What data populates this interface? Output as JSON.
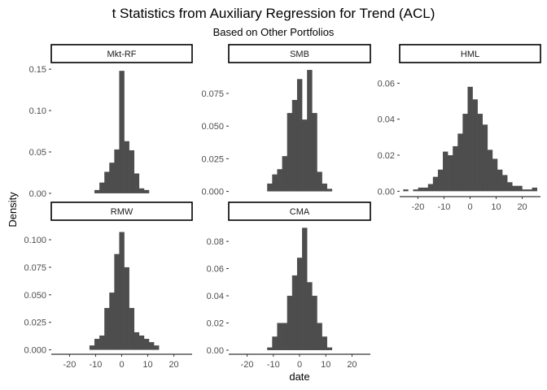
{
  "chart_data": {
    "type": "bar",
    "title": "t Statistics from Auxiliary Regression for Trend (ACL)",
    "subtitle": "Based on Other Portfolios",
    "xlabel": "date",
    "ylabel": "Density",
    "x_ticks": [
      "-20",
      "-10",
      "0",
      "10",
      "20"
    ],
    "xlim": [
      -27,
      27
    ],
    "bin_width": 1.9,
    "bar_color": "#4d4d4d",
    "strip_fill": "#ffffff",
    "strip_border": "#000000",
    "panels": [
      {
        "name": "Mkt-RF",
        "ylim": [
          -0.004,
          0.157
        ],
        "y_ticks": [
          "0.00",
          "0.05",
          "0.10",
          "0.15"
        ],
        "bins": [
          [
            -9.5,
            0.004
          ],
          [
            -7.6,
            0.013
          ],
          [
            -5.7,
            0.026
          ],
          [
            -3.8,
            0.037
          ],
          [
            -1.9,
            0.053
          ],
          [
            0,
            0.148
          ],
          [
            1.9,
            0.063
          ],
          [
            3.8,
            0.052
          ],
          [
            5.7,
            0.024
          ],
          [
            7.6,
            0.006
          ],
          [
            9.5,
            0.004
          ]
        ]
      },
      {
        "name": "SMB",
        "ylim": [
          -0.004,
          0.098
        ],
        "y_ticks": [
          "0.000",
          "0.025",
          "0.050",
          "0.075"
        ],
        "bins": [
          [
            -11.4,
            0.006
          ],
          [
            -9.5,
            0.013
          ],
          [
            -7.6,
            0.017
          ],
          [
            -5.7,
            0.027
          ],
          [
            -3.8,
            0.06
          ],
          [
            -1.9,
            0.07
          ],
          [
            0,
            0.086
          ],
          [
            1.9,
            0.055
          ],
          [
            3.8,
            0.093
          ],
          [
            5.7,
            0.06
          ],
          [
            7.6,
            0.015
          ],
          [
            9.5,
            0.006
          ],
          [
            11.4,
            0.002
          ]
        ]
      },
      {
        "name": "HML",
        "ylim": [
          -0.003,
          0.071
        ],
        "y_ticks": [
          "0.00",
          "0.02",
          "0.04",
          "0.06"
        ],
        "bins": [
          [
            -24.7,
            0.001
          ],
          [
            -20.9,
            0.001
          ],
          [
            -19,
            0.002
          ],
          [
            -17.1,
            0.002
          ],
          [
            -15.2,
            0.004
          ],
          [
            -13.3,
            0.008
          ],
          [
            -11.4,
            0.012
          ],
          [
            -9.5,
            0.022
          ],
          [
            -7.6,
            0.02
          ],
          [
            -5.7,
            0.025
          ],
          [
            -3.8,
            0.032
          ],
          [
            -1.9,
            0.043
          ],
          [
            0,
            0.058
          ],
          [
            1.9,
            0.051
          ],
          [
            3.8,
            0.043
          ],
          [
            5.7,
            0.037
          ],
          [
            7.6,
            0.023
          ],
          [
            9.5,
            0.018
          ],
          [
            11.4,
            0.012
          ],
          [
            13.3,
            0.009
          ],
          [
            15.2,
            0.005
          ],
          [
            17.1,
            0.003
          ],
          [
            19,
            0.003
          ],
          [
            20.9,
            0.001
          ],
          [
            22.8,
            0.001
          ],
          [
            24.7,
            0.002
          ]
        ]
      },
      {
        "name": "RMW",
        "ylim": [
          -0.004,
          0.117
        ],
        "y_ticks": [
          "0.000",
          "0.025",
          "0.050",
          "0.075",
          "0.100"
        ],
        "bins": [
          [
            -11.4,
            0.004
          ],
          [
            -9.5,
            0.01
          ],
          [
            -7.6,
            0.013
          ],
          [
            -5.7,
            0.038
          ],
          [
            -3.8,
            0.052
          ],
          [
            -1.9,
            0.087
          ],
          [
            0,
            0.107
          ],
          [
            1.9,
            0.075
          ],
          [
            3.8,
            0.038
          ],
          [
            5.7,
            0.016
          ],
          [
            7.6,
            0.013
          ],
          [
            9.5,
            0.01
          ],
          [
            11.4,
            0.007
          ],
          [
            13.3,
            0.004
          ]
        ]
      },
      {
        "name": "CMA",
        "ylim": [
          -0.003,
          0.095
        ],
        "y_ticks": [
          "0.00",
          "0.02",
          "0.04",
          "0.06",
          "0.08"
        ],
        "bins": [
          [
            -11.4,
            0.002
          ],
          [
            -9.5,
            0.01
          ],
          [
            -7.6,
            0.02
          ],
          [
            -5.7,
            0.02
          ],
          [
            -3.8,
            0.04
          ],
          [
            -1.9,
            0.055
          ],
          [
            0,
            0.068
          ],
          [
            1.9,
            0.09
          ],
          [
            3.8,
            0.05
          ],
          [
            5.7,
            0.04
          ],
          [
            7.6,
            0.02
          ],
          [
            9.5,
            0.01
          ],
          [
            11.4,
            0.002
          ]
        ]
      }
    ]
  }
}
